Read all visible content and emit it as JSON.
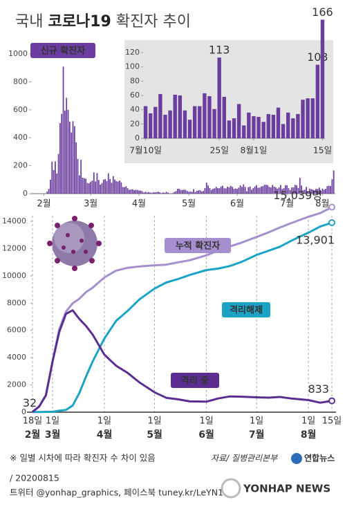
{
  "title": {
    "prefix": "국내",
    "bold": "코로나19",
    "suffix": "확진자 추이"
  },
  "chart_data": [
    {
      "type": "bar",
      "label": "신규 확진자",
      "color": "#6a3d9e",
      "values": [
        2,
        0,
        0,
        0,
        0,
        0,
        1,
        0,
        1,
        15,
        34,
        100,
        229,
        169,
        231,
        144,
        284,
        505,
        571,
        909,
        595,
        686,
        600,
        516,
        438,
        518,
        483,
        367,
        248,
        131,
        242,
        114,
        110,
        107,
        76,
        74,
        84,
        93,
        152,
        87,
        147,
        98,
        64,
        76,
        100,
        104,
        91,
        146,
        105,
        78,
        125,
        101,
        89,
        86,
        94,
        81,
        47,
        47,
        53,
        39,
        27,
        30,
        32,
        25,
        27,
        27,
        22,
        22,
        18,
        8,
        13,
        9,
        11,
        8,
        6,
        10,
        10,
        10,
        14,
        9,
        4,
        9,
        6,
        13,
        8,
        3,
        2,
        4,
        12,
        18,
        34,
        35,
        27,
        26,
        29,
        27,
        19,
        13,
        15,
        13,
        32,
        12,
        20,
        23,
        25,
        16,
        19,
        40,
        79,
        58,
        39,
        27,
        35,
        38,
        49,
        39,
        39,
        51,
        57,
        38,
        38,
        50,
        45,
        56,
        49,
        34,
        37,
        34,
        43,
        59,
        49,
        67,
        48,
        17,
        46,
        51,
        28,
        39,
        51,
        62,
        42,
        43,
        51,
        54,
        63,
        63,
        61,
        48,
        44,
        62,
        50,
        45,
        35,
        44,
        62,
        33,
        39,
        61,
        60,
        39,
        26,
        45,
        45,
        63,
        59,
        41,
        113,
        58,
        25,
        28,
        48,
        18,
        36,
        31,
        30,
        23,
        34,
        33,
        43,
        20,
        36,
        28,
        34,
        54,
        56,
        56,
        103,
        166
      ],
      "xlim": [
        -1,
        188
      ],
      "xticks": [
        {
          "value": 7,
          "label": "2월"
        },
        {
          "value": 36,
          "label": "3월"
        },
        {
          "value": 66,
          "label": "4월"
        },
        {
          "value": 97,
          "label": "5월"
        },
        {
          "value": 127,
          "label": "6월"
        },
        {
          "value": 158,
          "label": "7월"
        },
        {
          "value": 180,
          "label": "8월"
        }
      ],
      "ylim": [
        0,
        1000
      ],
      "yticks": [
        0,
        200,
        400,
        600,
        800,
        1000
      ]
    },
    {
      "type": "bar",
      "color": "#6a3d9e",
      "label_color": "#8a63c0",
      "values": [
        45,
        35,
        44,
        62,
        33,
        39,
        61,
        60,
        39,
        26,
        45,
        45,
        63,
        59,
        41,
        113,
        58,
        25,
        28,
        48,
        18,
        36,
        31,
        30,
        23,
        34,
        33,
        43,
        20,
        36,
        28,
        34,
        54,
        56,
        56,
        103,
        166
      ],
      "value_labels": [
        null,
        null,
        null,
        null,
        null,
        null,
        null,
        null,
        null,
        null,
        null,
        null,
        null,
        null,
        null,
        "113",
        null,
        null,
        null,
        null,
        null,
        null,
        null,
        null,
        null,
        null,
        null,
        null,
        null,
        null,
        null,
        null,
        null,
        null,
        null,
        "103",
        "166"
      ],
      "xlim": [
        -0.5,
        36.5
      ],
      "xticks": [
        {
          "value": 0,
          "label": "7월10일"
        },
        {
          "value": 15,
          "label": "25일"
        },
        {
          "value": 22,
          "label": "8월1일"
        },
        {
          "value": 36,
          "label": "15일"
        }
      ],
      "ylim": [
        0,
        120
      ],
      "yticks": [
        0,
        20,
        40,
        60,
        80,
        100,
        120
      ]
    },
    {
      "type": "line",
      "x": [
        0,
        4,
        8,
        12,
        16,
        20,
        24,
        28,
        32,
        36,
        43,
        50,
        57,
        64,
        73,
        80,
        87,
        94,
        104,
        111,
        118,
        125,
        134,
        141,
        148,
        155,
        165,
        172,
        179
      ],
      "series": [
        {
          "name": "누적 확진자",
          "color": "#a58fcf",
          "values": [
            32,
            433,
            1261,
            3736,
            6088,
            7382,
            7979,
            8320,
            8799,
            9137,
            9887,
            10384,
            10591,
            10694,
            10774,
            10822,
            10991,
            11142,
            11503,
            11852,
            12155,
            12438,
            12850,
            13181,
            13551,
            13879,
            14336,
            14598,
            15039
          ],
          "value_labels": [
            "32",
            null,
            null,
            null,
            null,
            null,
            null,
            null,
            null,
            null,
            null,
            null,
            null,
            null,
            null,
            null,
            null,
            null,
            null,
            null,
            null,
            null,
            null,
            null,
            null,
            null,
            null,
            null,
            "15,039명"
          ]
        },
        {
          "name": "격리해제",
          "color": "#1ba3c6",
          "values": [
            12,
            16,
            24,
            30,
            108,
            166,
            489,
            1401,
            2612,
            3730,
            5408,
            6694,
            7447,
            8277,
            9072,
            9510,
            9762,
            10066,
            10422,
            10531,
            10718,
            11021,
            11537,
            11832,
            12138,
            12590,
            13169,
            13615,
            13901
          ],
          "value_labels": [
            null,
            null,
            null,
            null,
            null,
            null,
            null,
            null,
            null,
            null,
            null,
            null,
            null,
            null,
            null,
            null,
            null,
            null,
            null,
            null,
            null,
            null,
            null,
            null,
            null,
            null,
            null,
            null,
            "13,901"
          ]
        },
        {
          "name": "격리 중",
          "color": "#5c2d91",
          "values": [
            20,
            415,
            1231,
            3706,
            5884,
            7212,
            7470,
            6838,
            6325,
            5684,
            4216,
            3408,
            2873,
            2179,
            1454,
            1055,
            944,
            791,
            771,
            1002,
            1157,
            1134,
            1090,
            1065,
            1118,
            1000,
            888,
            693,
            833
          ],
          "value_labels": [
            null,
            null,
            null,
            null,
            null,
            null,
            null,
            null,
            null,
            null,
            null,
            null,
            null,
            null,
            null,
            null,
            null,
            null,
            null,
            null,
            null,
            null,
            null,
            null,
            null,
            null,
            null,
            null,
            "833"
          ]
        }
      ],
      "xlim": [
        0,
        179
      ],
      "xticks": [
        {
          "value": 0,
          "label": "18일"
        },
        {
          "value": 12,
          "label": "1일"
        },
        {
          "value": 43,
          "label": "1일"
        },
        {
          "value": 73,
          "label": "1일"
        },
        {
          "value": 104,
          "label": "1일"
        },
        {
          "value": 134,
          "label": "1일"
        },
        {
          "value": 165,
          "label": "1일"
        },
        {
          "value": 179,
          "label": "15일"
        }
      ],
      "month_labels": [
        {
          "value": 0,
          "label": "2월"
        },
        {
          "value": 12,
          "label": "3월"
        },
        {
          "value": 43,
          "label": "4월"
        },
        {
          "value": 73,
          "label": "5월"
        },
        {
          "value": 104,
          "label": "6월"
        },
        {
          "value": 134,
          "label": "7월"
        },
        {
          "value": 165,
          "label": "8월"
        }
      ],
      "ylim": [
        0,
        14000
      ],
      "yticks": [
        0,
        2000,
        4000,
        6000,
        8000,
        10000,
        12000,
        14000
      ]
    }
  ],
  "footer": {
    "note": "※ 일별 시차에 따라 확진자 수 차이 있음",
    "source": "자료/ 질병관리본부",
    "logo": "연합뉴스",
    "date": "/ 20200815",
    "social": "트위터 @yonhap_graphics, 페이스북 tuney.kr/LeYN1",
    "watermark": "YONHAP NEWS"
  }
}
